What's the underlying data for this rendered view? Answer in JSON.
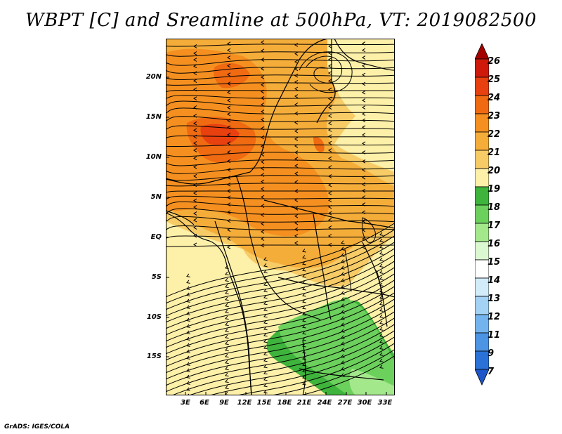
{
  "title": "WBPT [C] and Sreamline at 500hPa, VT: 2019082500",
  "credit": "GrADS: IGES/COLA",
  "map": {
    "variable": "WBPT",
    "units": "C",
    "level": "500hPa",
    "valid_time": "2019082500",
    "lat_labels": [
      "20N",
      "15N",
      "10N",
      "5N",
      "EQ",
      "5S",
      "10S",
      "15S"
    ],
    "lon_labels": [
      "3E",
      "6E",
      "9E",
      "12E",
      "15E",
      "18E",
      "21E",
      "24E",
      "27E",
      "30E",
      "33E"
    ]
  },
  "colorbar": {
    "labels": [
      "26",
      "25",
      "24",
      "23",
      "22",
      "21",
      "20",
      "19",
      "18",
      "17",
      "16",
      "15",
      "14",
      "13",
      "12",
      "11",
      "9",
      "7"
    ],
    "colors": [
      "#a50000",
      "#cf1a0b",
      "#e8400f",
      "#f06a12",
      "#f59020",
      "#f5ad3a",
      "#f7cb66",
      "#fdf0a8",
      "#3eb43c",
      "#6cd05c",
      "#a4e88c",
      "#dcf8d0",
      "#ffffff",
      "#d2ecfa",
      "#a4d2f4",
      "#74b4ee",
      "#4c94e4",
      "#2a72d8",
      "#1c56c8"
    ]
  }
}
